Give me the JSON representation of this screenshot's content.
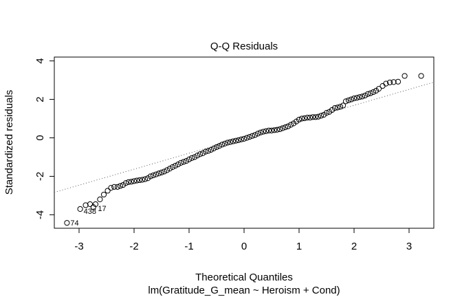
{
  "chart_data": {
    "type": "scatter",
    "title": "Q-Q Residuals",
    "xlabel": "Theoretical Quantiles",
    "subtitle": "lm(Gratitude_G_mean ~ Heroism + Cond)",
    "ylabel": "Standardized residuals",
    "xlim": [
      -3.45,
      3.45
    ],
    "ylim": [
      -4.7,
      4.2
    ],
    "xticks": [
      -3,
      -2,
      -1,
      0,
      1,
      2,
      3
    ],
    "yticks": [
      -4,
      -2,
      0,
      2,
      4
    ],
    "grid": false,
    "reference_line": {
      "intercept": 0.03,
      "slope": 0.83,
      "style": "dotted",
      "color": "#555555"
    },
    "labeled_points": [
      {
        "label": "74",
        "x": -3.22,
        "y": -4.42
      },
      {
        "label": "438",
        "x": -2.98,
        "y": -3.7
      },
      {
        "label": "17",
        "x": -2.72,
        "y": -3.55
      }
    ],
    "points": [
      [
        -3.22,
        -4.42
      ],
      [
        -2.98,
        -3.7
      ],
      [
        -2.88,
        -3.5
      ],
      [
        -2.8,
        -3.45
      ],
      [
        -2.74,
        -3.6
      ],
      [
        -2.7,
        -3.45
      ],
      [
        -2.62,
        -3.2
      ],
      [
        -2.55,
        -2.95
      ],
      [
        -2.48,
        -2.75
      ],
      [
        -2.42,
        -2.6
      ],
      [
        -2.36,
        -2.55
      ],
      [
        -2.3,
        -2.55
      ],
      [
        -2.25,
        -2.5
      ],
      [
        -2.2,
        -2.45
      ],
      [
        -2.15,
        -2.35
      ],
      [
        -2.1,
        -2.3
      ],
      [
        -2.05,
        -2.28
      ],
      [
        -2.0,
        -2.25
      ],
      [
        -1.95,
        -2.22
      ],
      [
        -1.9,
        -2.2
      ],
      [
        -1.85,
        -2.18
      ],
      [
        -1.8,
        -2.15
      ],
      [
        -1.75,
        -2.1
      ],
      [
        -1.7,
        -2.0
      ],
      [
        -1.65,
        -1.95
      ],
      [
        -1.6,
        -1.9
      ],
      [
        -1.55,
        -1.85
      ],
      [
        -1.5,
        -1.8
      ],
      [
        -1.45,
        -1.75
      ],
      [
        -1.4,
        -1.68
      ],
      [
        -1.35,
        -1.6
      ],
      [
        -1.3,
        -1.52
      ],
      [
        -1.25,
        -1.45
      ],
      [
        -1.2,
        -1.38
      ],
      [
        -1.15,
        -1.3
      ],
      [
        -1.1,
        -1.25
      ],
      [
        -1.05,
        -1.2
      ],
      [
        -1.0,
        -1.12
      ],
      [
        -0.95,
        -1.05
      ],
      [
        -0.9,
        -1.0
      ],
      [
        -0.85,
        -0.92
      ],
      [
        -0.8,
        -0.85
      ],
      [
        -0.75,
        -0.8
      ],
      [
        -0.7,
        -0.72
      ],
      [
        -0.65,
        -0.68
      ],
      [
        -0.6,
        -0.62
      ],
      [
        -0.55,
        -0.55
      ],
      [
        -0.5,
        -0.48
      ],
      [
        -0.45,
        -0.42
      ],
      [
        -0.4,
        -0.35
      ],
      [
        -0.35,
        -0.3
      ],
      [
        -0.3,
        -0.25
      ],
      [
        -0.25,
        -0.22
      ],
      [
        -0.2,
        -0.18
      ],
      [
        -0.15,
        -0.15
      ],
      [
        -0.1,
        -0.12
      ],
      [
        -0.05,
        -0.08
      ],
      [
        0.0,
        -0.05
      ],
      [
        0.05,
        0.0
      ],
      [
        0.1,
        0.05
      ],
      [
        0.15,
        0.1
      ],
      [
        0.2,
        0.15
      ],
      [
        0.25,
        0.22
      ],
      [
        0.3,
        0.28
      ],
      [
        0.35,
        0.32
      ],
      [
        0.4,
        0.35
      ],
      [
        0.45,
        0.38
      ],
      [
        0.5,
        0.38
      ],
      [
        0.55,
        0.4
      ],
      [
        0.6,
        0.42
      ],
      [
        0.65,
        0.45
      ],
      [
        0.7,
        0.5
      ],
      [
        0.75,
        0.55
      ],
      [
        0.8,
        0.6
      ],
      [
        0.85,
        0.68
      ],
      [
        0.9,
        0.75
      ],
      [
        0.95,
        0.85
      ],
      [
        1.0,
        0.95
      ],
      [
        1.05,
        1.0
      ],
      [
        1.1,
        1.02
      ],
      [
        1.15,
        1.05
      ],
      [
        1.2,
        1.05
      ],
      [
        1.25,
        1.08
      ],
      [
        1.3,
        1.08
      ],
      [
        1.35,
        1.1
      ],
      [
        1.4,
        1.15
      ],
      [
        1.45,
        1.2
      ],
      [
        1.5,
        1.3
      ],
      [
        1.55,
        1.35
      ],
      [
        1.6,
        1.45
      ],
      [
        1.65,
        1.55
      ],
      [
        1.7,
        1.58
      ],
      [
        1.75,
        1.62
      ],
      [
        1.8,
        1.68
      ],
      [
        1.85,
        1.9
      ],
      [
        1.9,
        1.95
      ],
      [
        1.95,
        2.0
      ],
      [
        2.0,
        2.05
      ],
      [
        2.05,
        2.08
      ],
      [
        2.1,
        2.12
      ],
      [
        2.15,
        2.15
      ],
      [
        2.2,
        2.2
      ],
      [
        2.25,
        2.28
      ],
      [
        2.3,
        2.32
      ],
      [
        2.35,
        2.38
      ],
      [
        2.4,
        2.45
      ],
      [
        2.45,
        2.55
      ],
      [
        2.52,
        2.7
      ],
      [
        2.58,
        2.82
      ],
      [
        2.65,
        2.88
      ],
      [
        2.72,
        2.9
      ],
      [
        2.8,
        2.92
      ],
      [
        2.92,
        3.22
      ],
      [
        3.22,
        3.22
      ]
    ]
  }
}
